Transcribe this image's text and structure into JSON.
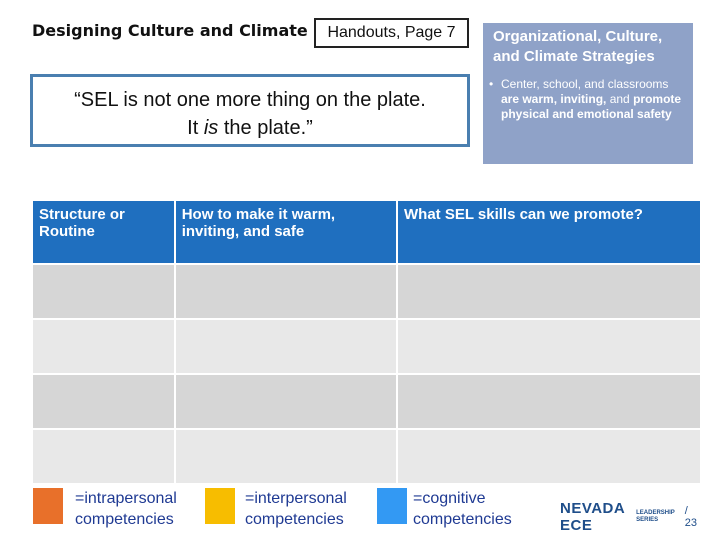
{
  "header": {
    "title": "Designing Culture and Climate",
    "handout": "Handouts, Page 7"
  },
  "quote": {
    "line1": "“SEL is not one more thing on the plate.",
    "line2_pre": "It ",
    "line2_em": "is",
    "line2_post": " the plate.”"
  },
  "strategies": {
    "title": "Organizational, Culture, and Climate Strategies",
    "bullet_marker": "•",
    "bullet_1": "Center, school, and classrooms ",
    "bullet_2": "are warm, inviting,",
    "bullet_3": " and ",
    "bullet_4": "promote physical and emotional safety"
  },
  "table": {
    "columns": [
      "Structure or Routine",
      "How to make it warm, inviting, and safe",
      "What SEL skills can we promote?"
    ],
    "row_count": 4
  },
  "legend": [
    {
      "label_1": "=intrapersonal",
      "label_2": "competencies",
      "color": "#e8702a"
    },
    {
      "label_1": "=interpersonal",
      "label_2": "competencies",
      "color": "#f7bd00"
    },
    {
      "label_1": "=cognitive",
      "label_2": "competencies",
      "color": "#3399f3"
    }
  ],
  "footer": {
    "logo_main": "NEVADA ECE",
    "logo_top": "LEADERSHIP",
    "logo_bottom": "SERIES",
    "page": "/ 23"
  }
}
